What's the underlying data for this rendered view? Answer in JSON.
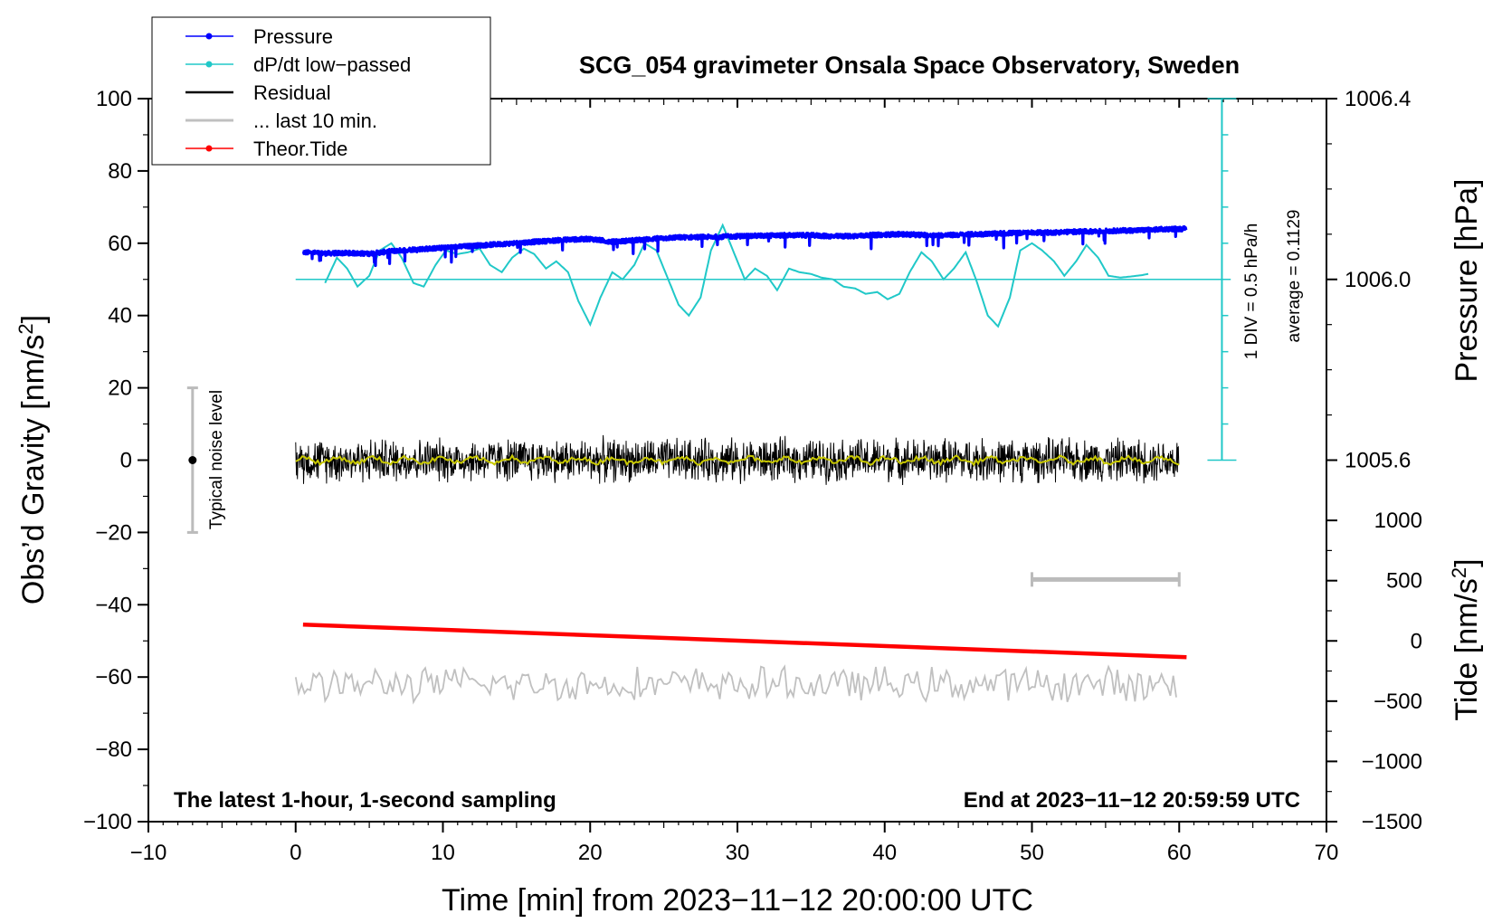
{
  "chart_data": {
    "type": "line",
    "title": "SCG_054 gravimeter Onsala Space Observatory, Sweden",
    "xlabel": "Time [min] from 2023−11−12 20:00:00 UTC",
    "ylabel": "Obs’d Gravity [nm/s²]",
    "ylabel_main": "Obs’d Gravity [nm/s",
    "ylabel_sup": "2",
    "ylabel_end": "]",
    "xlim": [
      -10,
      70
    ],
    "ylim": [
      -100,
      100
    ],
    "x_ticks": [
      -10,
      0,
      10,
      20,
      30,
      40,
      50,
      60,
      70
    ],
    "x_tick_labels": [
      "−10",
      "0",
      "10",
      "20",
      "30",
      "40",
      "50",
      "60",
      "70"
    ],
    "y_ticks": [
      -100,
      -80,
      -60,
      -40,
      -20,
      0,
      20,
      40,
      60,
      80,
      100
    ],
    "y_tick_labels": [
      "−100",
      "−80",
      "−60",
      "−40",
      "−20",
      "0",
      "20",
      "40",
      "60",
      "80",
      "100"
    ],
    "pressure_axis": {
      "label": "Pressure [hPa]",
      "ticks": [
        1005.6,
        1006.0,
        1006.4
      ],
      "tick_labels": [
        "1005.6",
        "1006.0",
        "1006.4"
      ],
      "gravity_at_1006_0": 50,
      "gravity_per_hpa": 125
    },
    "tide_axis": {
      "label_main": "Tide [nm/s",
      "label_sup": "2",
      "label_end": "]",
      "ticks": [
        1000,
        500,
        0,
        -500,
        -1000,
        -1500
      ],
      "tick_labels": [
        "1000",
        "500",
        "0",
        "−500",
        "−1000",
        "−1500"
      ],
      "gravity_at_0": -50,
      "gravity_per_unit": 0.03333
    },
    "dpdt_scale": {
      "label": "1 DIV = 0.5 hPa/h",
      "average_label": "average = 0.1129",
      "x": 62.9,
      "y_range": [
        0,
        100
      ],
      "divisions": 10
    },
    "noise_bar": {
      "label": "Typical noise level",
      "x": -7,
      "y_center": 0,
      "y_range": [
        -20,
        20
      ]
    },
    "last10_bar": {
      "x_range": [
        50,
        60
      ],
      "y": -33
    },
    "bottom_left_label": "The latest 1-hour, 1-second sampling",
    "bottom_right_label": "End at 2023−11−12 20:59:59 UTC",
    "legend": [
      {
        "label": "Pressure",
        "color": "#0000ff",
        "marker": true
      },
      {
        "label": "dP/dt low−passed",
        "color": "#20c8c8",
        "marker": true
      },
      {
        "label": "Residual",
        "color": "#000000",
        "marker": false
      },
      {
        "label": "... last 10 min.",
        "color": "#c0c0c0",
        "marker": false
      },
      {
        "label": "Theor.Tide",
        "color": "#ff0000",
        "marker": true
      }
    ],
    "series": [
      {
        "name": "Pressure",
        "color": "#0000ff",
        "x": [
          0.5,
          2,
          3.5,
          5,
          6.5,
          8,
          9.5,
          11,
          12.5,
          14,
          15.5,
          17,
          18.5,
          20,
          21.5,
          23,
          24.5,
          26,
          27.5,
          29,
          30.5,
          32,
          33.5,
          35,
          36.5,
          38,
          39.5,
          41,
          42.5,
          44,
          45.5,
          47,
          48.5,
          50,
          51.5,
          53,
          54.5,
          56,
          57.5,
          59,
          60.5
        ],
        "y": [
          57.5,
          57.2,
          57.3,
          57.1,
          57.8,
          58.3,
          58.6,
          59.0,
          59.4,
          59.8,
          60.2,
          60.6,
          61.0,
          61.2,
          60.4,
          60.8,
          61.3,
          61.6,
          61.7,
          61.8,
          62.0,
          62.1,
          62.2,
          62.2,
          61.9,
          62.0,
          62.3,
          62.5,
          62.3,
          62.2,
          62.4,
          62.6,
          62.8,
          62.9,
          63.0,
          63.2,
          63.3,
          63.5,
          63.6,
          63.9,
          64.0
        ]
      },
      {
        "name": "dP/dt low-passed",
        "color": "#20c8c8",
        "x": [
          2.0,
          2.8,
          3.5,
          4.2,
          5.0,
          5.7,
          6.5,
          7.2,
          8.0,
          8.7,
          9.5,
          10.2,
          11.0,
          11.7,
          12.5,
          13.2,
          14.0,
          14.7,
          15.5,
          16.2,
          17.0,
          17.7,
          18.5,
          19.2,
          20.0,
          20.7,
          21.5,
          22.2,
          23.0,
          23.7,
          24.5,
          25.2,
          26.0,
          26.7,
          27.5,
          28.2,
          29.0,
          29.7,
          30.5,
          31.2,
          32.0,
          32.7,
          33.5,
          34.2,
          35.0,
          35.7,
          36.5,
          37.2,
          38.0,
          38.7,
          39.5,
          40.2,
          41.0,
          41.7,
          42.5,
          43.2,
          44.0,
          44.7,
          45.5,
          46.2,
          47.0,
          47.7,
          48.5,
          49.2,
          50.0,
          50.7,
          51.5,
          52.2,
          53.0,
          53.7,
          54.5,
          55.2,
          56.0,
          56.7,
          57.5,
          58.0
        ],
        "y": [
          49.0,
          56.0,
          53.0,
          48.0,
          51.0,
          58.0,
          60.0,
          56.0,
          49.0,
          48.0,
          54.0,
          58.0,
          57.0,
          57.5,
          58.5,
          54.0,
          52.0,
          56.0,
          58.5,
          57.0,
          53.0,
          55.0,
          52.0,
          44.0,
          37.5,
          45.0,
          52.0,
          50.0,
          54.0,
          60.0,
          58.0,
          51.0,
          43.0,
          40.0,
          45.0,
          58.0,
          65.0,
          58.0,
          50.0,
          53.0,
          51.0,
          47.0,
          53.0,
          52.0,
          51.5,
          50.5,
          50.0,
          48.0,
          47.5,
          46.0,
          46.5,
          44.5,
          46.0,
          52.0,
          57.5,
          55.0,
          50.0,
          53.0,
          57.5,
          50.0,
          40.0,
          37.0,
          45.0,
          58.0,
          60.0,
          58.0,
          55.0,
          51.0,
          55.0,
          59.5,
          56.0,
          51.0,
          50.5,
          50.8,
          51.2,
          51.6
        ]
      },
      {
        "name": "Residual",
        "color": "#000000",
        "x_range": [
          0,
          60
        ],
        "center": 0,
        "amplitude": 7
      },
      {
        "name": "Residual smoothed",
        "color": "#c8c800",
        "x_range": [
          0,
          60
        ],
        "center": 0,
        "amplitude": 1.2
      },
      {
        "name": "... last 10 min.",
        "color": "#c0c0c0",
        "x_range": [
          0,
          60
        ],
        "center": -62,
        "amplitude": 5
      },
      {
        "name": "Theor.Tide",
        "color": "#ff0000",
        "x": [
          0.5,
          60.5
        ],
        "y": [
          -45.5,
          -54.5
        ]
      }
    ]
  }
}
